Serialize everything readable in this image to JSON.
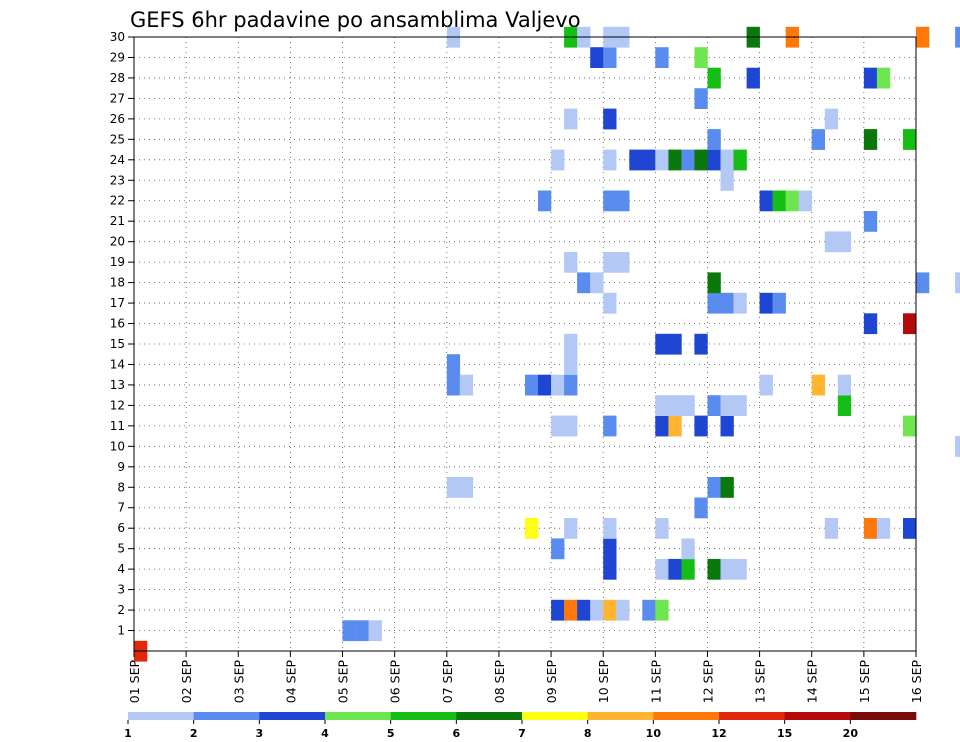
{
  "chart_data": {
    "type": "heatmap",
    "title": "GEFS 6hr padavine po ansamblima Valjevo",
    "y_ticks": [
      "1",
      "2",
      "3",
      "4",
      "5",
      "6",
      "7",
      "8",
      "9",
      "10",
      "11",
      "12",
      "13",
      "14",
      "15",
      "16",
      "17",
      "18",
      "19",
      "20",
      "21",
      "22",
      "23",
      "24",
      "25",
      "26",
      "27",
      "28",
      "29",
      "30"
    ],
    "x_ticks": [
      "01 SEP",
      "02 SEP",
      "03 SEP",
      "04 SEP",
      "05 SEP",
      "06 SEP",
      "07 SEP",
      "08 SEP",
      "09 SEP",
      "10 SEP",
      "11 SEP",
      "12 SEP",
      "13 SEP",
      "14 SEP",
      "15 SEP",
      "16 SEP"
    ],
    "x_range_days": [
      1,
      16
    ],
    "y_range": [
      0,
      30
    ],
    "grid": true,
    "legend": {
      "placement": "bottom",
      "labels": [
        "1",
        "2",
        "3",
        "4",
        "5",
        "6",
        "7",
        "8",
        "10",
        "12",
        "15",
        "20"
      ],
      "colors": [
        "#b4c8f5",
        "#5a8cf0",
        "#1e46d2",
        "#6ee650",
        "#14be14",
        "#0a780a",
        "#ffff14",
        "#ffb432",
        "#ff780a",
        "#e1280a",
        "#b40a0a",
        "#780a0a"
      ]
    },
    "cells": [
      {
        "m": 0,
        "d": 1,
        "h": 0,
        "l": 9
      },
      {
        "m": 1,
        "d": 5,
        "h": 0,
        "l": 1
      },
      {
        "m": 1,
        "d": 5,
        "h": 6,
        "l": 1
      },
      {
        "m": 1,
        "d": 5,
        "h": 12,
        "l": 0
      },
      {
        "m": 2,
        "d": 9,
        "h": 0,
        "l": 2
      },
      {
        "m": 2,
        "d": 9,
        "h": 6,
        "l": 8
      },
      {
        "m": 2,
        "d": 9,
        "h": 12,
        "l": 2
      },
      {
        "m": 2,
        "d": 9,
        "h": 18,
        "l": 0
      },
      {
        "m": 2,
        "d": 10,
        "h": 0,
        "l": 7
      },
      {
        "m": 2,
        "d": 10,
        "h": 6,
        "l": 0
      },
      {
        "m": 2,
        "d": 10,
        "h": 18,
        "l": 1
      },
      {
        "m": 2,
        "d": 11,
        "h": 0,
        "l": 3
      },
      {
        "m": 4,
        "d": 10,
        "h": 0,
        "l": 2
      },
      {
        "m": 4,
        "d": 11,
        "h": 0,
        "l": 0
      },
      {
        "m": 4,
        "d": 11,
        "h": 6,
        "l": 2
      },
      {
        "m": 4,
        "d": 11,
        "h": 12,
        "l": 4
      },
      {
        "m": 4,
        "d": 12,
        "h": 0,
        "l": 5
      },
      {
        "m": 4,
        "d": 12,
        "h": 6,
        "l": 0
      },
      {
        "m": 4,
        "d": 12,
        "h": 12,
        "l": 0
      },
      {
        "m": 5,
        "d": 9,
        "h": 0,
        "l": 1
      },
      {
        "m": 5,
        "d": 10,
        "h": 0,
        "l": 2
      },
      {
        "m": 5,
        "d": 11,
        "h": 12,
        "l": 0
      },
      {
        "m": 6,
        "d": 8,
        "h": 12,
        "l": 6
      },
      {
        "m": 6,
        "d": 9,
        "h": 6,
        "l": 0
      },
      {
        "m": 6,
        "d": 10,
        "h": 0,
        "l": 0
      },
      {
        "m": 6,
        "d": 11,
        "h": 0,
        "l": 0
      },
      {
        "m": 6,
        "d": 14,
        "h": 6,
        "l": 0
      },
      {
        "m": 6,
        "d": 15,
        "h": 18,
        "l": 2
      },
      {
        "m": 6,
        "d": 15,
        "h": 0,
        "l": 8
      },
      {
        "m": 6,
        "d": 15,
        "h": 6,
        "l": 0
      },
      {
        "m": 7,
        "d": 11,
        "h": 18,
        "l": 1
      },
      {
        "m": 8,
        "d": 7,
        "h": 0,
        "l": 0
      },
      {
        "m": 8,
        "d": 7,
        "h": 6,
        "l": 0
      },
      {
        "m": 8,
        "d": 12,
        "h": 0,
        "l": 1
      },
      {
        "m": 8,
        "d": 12,
        "h": 6,
        "l": 5
      },
      {
        "m": 10,
        "d": 16,
        "h": 18,
        "l": 0
      },
      {
        "m": 11,
        "d": 9,
        "h": 0,
        "l": 0
      },
      {
        "m": 11,
        "d": 9,
        "h": 6,
        "l": 0
      },
      {
        "m": 11,
        "d": 10,
        "h": 0,
        "l": 1
      },
      {
        "m": 11,
        "d": 11,
        "h": 0,
        "l": 2
      },
      {
        "m": 11,
        "d": 11,
        "h": 6,
        "l": 7
      },
      {
        "m": 11,
        "d": 11,
        "h": 18,
        "l": 2
      },
      {
        "m": 11,
        "d": 12,
        "h": 6,
        "l": 2
      },
      {
        "m": 11,
        "d": 15,
        "h": 18,
        "l": 3
      },
      {
        "m": 12,
        "d": 11,
        "h": 0,
        "l": 0
      },
      {
        "m": 12,
        "d": 11,
        "h": 6,
        "l": 0
      },
      {
        "m": 12,
        "d": 11,
        "h": 12,
        "l": 0
      },
      {
        "m": 12,
        "d": 12,
        "h": 0,
        "l": 1
      },
      {
        "m": 12,
        "d": 12,
        "h": 6,
        "l": 0
      },
      {
        "m": 12,
        "d": 12,
        "h": 12,
        "l": 0
      },
      {
        "m": 12,
        "d": 14,
        "h": 12,
        "l": 4
      },
      {
        "m": 13,
        "d": 7,
        "h": 0,
        "l": 1
      },
      {
        "m": 13,
        "d": 7,
        "h": 6,
        "l": 0
      },
      {
        "m": 13,
        "d": 8,
        "h": 12,
        "l": 1
      },
      {
        "m": 13,
        "d": 8,
        "h": 18,
        "l": 2
      },
      {
        "m": 13,
        "d": 9,
        "h": 0,
        "l": 0
      },
      {
        "m": 13,
        "d": 9,
        "h": 6,
        "l": 1
      },
      {
        "m": 13,
        "d": 13,
        "h": 0,
        "l": 0
      },
      {
        "m": 13,
        "d": 14,
        "h": 0,
        "l": 7
      },
      {
        "m": 13,
        "d": 14,
        "h": 12,
        "l": 0
      },
      {
        "m": 14,
        "d": 7,
        "h": 0,
        "l": 1
      },
      {
        "m": 14,
        "d": 9,
        "h": 6,
        "l": 0
      },
      {
        "m": 15,
        "d": 9,
        "h": 6,
        "l": 0
      },
      {
        "m": 15,
        "d": 11,
        "h": 18,
        "l": 2
      },
      {
        "m": 15,
        "d": 11,
        "h": 0,
        "l": 2
      },
      {
        "m": 15,
        "d": 11,
        "h": 6,
        "l": 2
      },
      {
        "m": 16,
        "d": 15,
        "h": 18,
        "l": 10
      },
      {
        "m": 16,
        "d": 15,
        "h": 0,
        "l": 2
      },
      {
        "m": 17,
        "d": 10,
        "h": 0,
        "l": 0
      },
      {
        "m": 17,
        "d": 12,
        "h": 0,
        "l": 1
      },
      {
        "m": 17,
        "d": 12,
        "h": 6,
        "l": 1
      },
      {
        "m": 17,
        "d": 12,
        "h": 12,
        "l": 0
      },
      {
        "m": 17,
        "d": 13,
        "h": 0,
        "l": 2
      },
      {
        "m": 17,
        "d": 13,
        "h": 6,
        "l": 1
      },
      {
        "m": 18,
        "d": 9,
        "h": 12,
        "l": 1
      },
      {
        "m": 18,
        "d": 9,
        "h": 18,
        "l": 0
      },
      {
        "m": 18,
        "d": 12,
        "h": 0,
        "l": 5
      },
      {
        "m": 18,
        "d": 16,
        "h": 18,
        "l": 0
      },
      {
        "m": 18,
        "d": 16,
        "h": 0,
        "l": 1
      },
      {
        "m": 19,
        "d": 9,
        "h": 6,
        "l": 0
      },
      {
        "m": 19,
        "d": 10,
        "h": 0,
        "l": 0
      },
      {
        "m": 19,
        "d": 10,
        "h": 6,
        "l": 0
      },
      {
        "m": 20,
        "d": 14,
        "h": 6,
        "l": 0
      },
      {
        "m": 20,
        "d": 14,
        "h": 12,
        "l": 0
      },
      {
        "m": 21,
        "d": 15,
        "h": 0,
        "l": 1
      },
      {
        "m": 22,
        "d": 8,
        "h": 18,
        "l": 1
      },
      {
        "m": 22,
        "d": 10,
        "h": 0,
        "l": 1
      },
      {
        "m": 22,
        "d": 10,
        "h": 6,
        "l": 1
      },
      {
        "m": 22,
        "d": 13,
        "h": 0,
        "l": 2
      },
      {
        "m": 22,
        "d": 13,
        "h": 6,
        "l": 4
      },
      {
        "m": 22,
        "d": 13,
        "h": 12,
        "l": 3
      },
      {
        "m": 22,
        "d": 13,
        "h": 18,
        "l": 0
      },
      {
        "m": 23,
        "d": 12,
        "h": 6,
        "l": 0
      },
      {
        "m": 24,
        "d": 9,
        "h": 0,
        "l": 0
      },
      {
        "m": 24,
        "d": 10,
        "h": 0,
        "l": 0
      },
      {
        "m": 24,
        "d": 10,
        "h": 12,
        "l": 2
      },
      {
        "m": 24,
        "d": 10,
        "h": 18,
        "l": 2
      },
      {
        "m": 24,
        "d": 11,
        "h": 0,
        "l": 0
      },
      {
        "m": 24,
        "d": 11,
        "h": 6,
        "l": 5
      },
      {
        "m": 24,
        "d": 11,
        "h": 12,
        "l": 1
      },
      {
        "m": 24,
        "d": 11,
        "h": 18,
        "l": 5
      },
      {
        "m": 24,
        "d": 12,
        "h": 0,
        "l": 2
      },
      {
        "m": 24,
        "d": 12,
        "h": 6,
        "l": 0
      },
      {
        "m": 24,
        "d": 12,
        "h": 12,
        "l": 4
      },
      {
        "m": 25,
        "d": 12,
        "h": 0,
        "l": 1
      },
      {
        "m": 25,
        "d": 14,
        "h": 0,
        "l": 1
      },
      {
        "m": 25,
        "d": 15,
        "h": 18,
        "l": 4
      },
      {
        "m": 25,
        "d": 15,
        "h": 0,
        "l": 5
      },
      {
        "m": 26,
        "d": 9,
        "h": 6,
        "l": 0
      },
      {
        "m": 26,
        "d": 10,
        "h": 0,
        "l": 2
      },
      {
        "m": 26,
        "d": 14,
        "h": 6,
        "l": 0
      },
      {
        "m": 27,
        "d": 11,
        "h": 18,
        "l": 1
      },
      {
        "m": 28,
        "d": 12,
        "h": 18,
        "l": 2
      },
      {
        "m": 28,
        "d": 12,
        "h": 0,
        "l": 4
      },
      {
        "m": 28,
        "d": 15,
        "h": 0,
        "l": 2
      },
      {
        "m": 28,
        "d": 15,
        "h": 6,
        "l": 3
      },
      {
        "m": 29,
        "d": 9,
        "h": 18,
        "l": 2
      },
      {
        "m": 29,
        "d": 10,
        "h": 0,
        "l": 1
      },
      {
        "m": 29,
        "d": 11,
        "h": 18,
        "l": 3
      },
      {
        "m": 29,
        "d": 11,
        "h": 0,
        "l": 1
      },
      {
        "m": 30,
        "d": 7,
        "h": 0,
        "l": 0
      },
      {
        "m": 30,
        "d": 9,
        "h": 6,
        "l": 4
      },
      {
        "m": 30,
        "d": 9,
        "h": 12,
        "l": 0
      },
      {
        "m": 30,
        "d": 10,
        "h": 0,
        "l": 0
      },
      {
        "m": 30,
        "d": 10,
        "h": 6,
        "l": 0
      },
      {
        "m": 30,
        "d": 12,
        "h": 18,
        "l": 5
      },
      {
        "m": 30,
        "d": 13,
        "h": 12,
        "l": 8
      },
      {
        "m": 30,
        "d": 16,
        "h": 18,
        "l": 1
      },
      {
        "m": 30,
        "d": 16,
        "h": 0,
        "l": 8
      }
    ]
  }
}
